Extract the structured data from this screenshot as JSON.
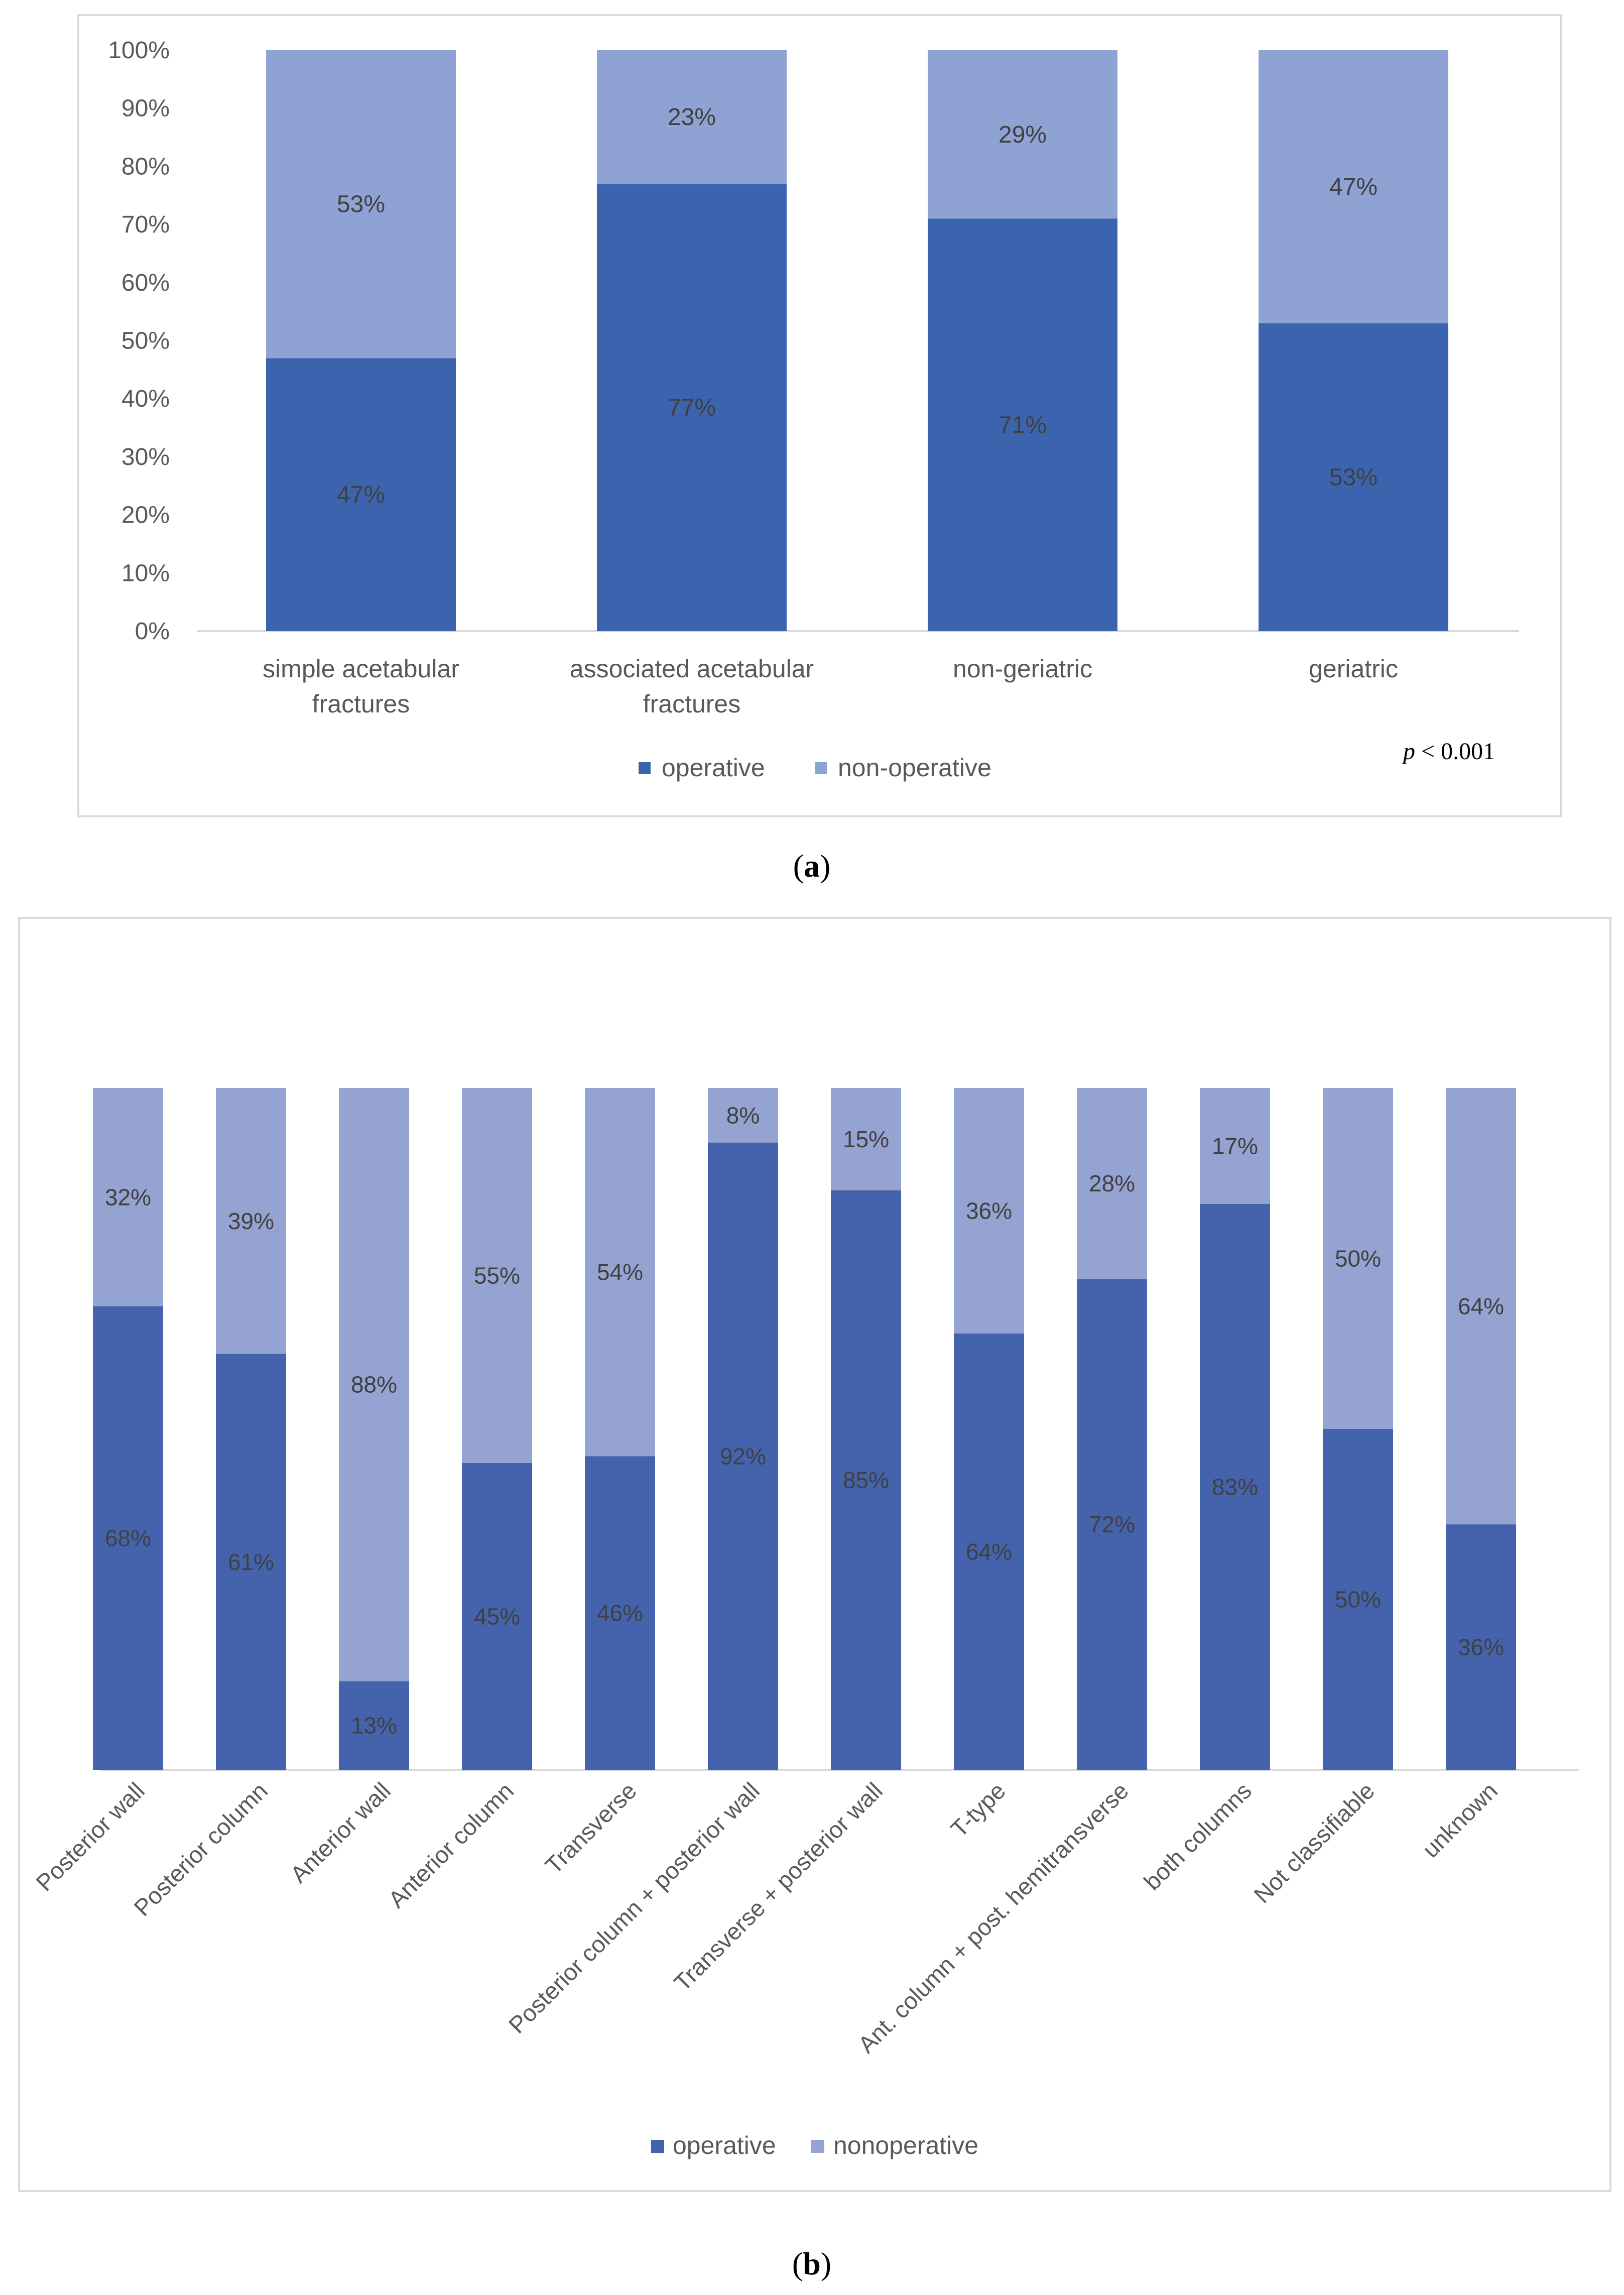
{
  "colors": {
    "operative_a": "#3c64ae",
    "nonoperative_a": "#8fa2d4",
    "operative_b": "#4563ac",
    "nonoperative_b": "#94a3d2",
    "frame": "#d9d9d9",
    "label": "#404040"
  },
  "panel_a": {
    "caption_letter": "a",
    "p_value_label": "p",
    "p_value_rest": " < 0.001"
  },
  "panel_b": {
    "caption_letter": "b"
  },
  "chart_data": [
    {
      "type": "bar",
      "stacked": true,
      "percent": true,
      "categories": [
        [
          "simple acetabular",
          "fractures"
        ],
        [
          "associated acetabular",
          "fractures"
        ],
        [
          "non-geriatric"
        ],
        [
          "geriatric"
        ]
      ],
      "series": [
        {
          "name": "operative",
          "values": [
            47,
            77,
            71,
            53
          ],
          "labels": [
            "47%",
            "77%",
            "71%",
            "53%"
          ]
        },
        {
          "name": "non-operative",
          "values": [
            53,
            23,
            29,
            47
          ],
          "labels": [
            "53%",
            "23%",
            "29%",
            "47%"
          ]
        }
      ],
      "ylim": [
        0,
        100
      ],
      "yticks": [
        "0%",
        "10%",
        "20%",
        "30%",
        "40%",
        "50%",
        "60%",
        "70%",
        "80%",
        "90%",
        "100%"
      ],
      "legend": "bottom",
      "annotation": "p < 0.001"
    },
    {
      "type": "bar",
      "stacked": true,
      "percent": true,
      "categories": [
        "Posterior wall",
        "Posterior column",
        "Anterior wall",
        "Anterior column",
        "Transverse",
        "Posterior column + posterior wall",
        "Transverse + posterior wall",
        "T-type",
        "Ant. column + post. hemitransverse",
        "both columns",
        "Not classifiable",
        "unknown"
      ],
      "series": [
        {
          "name": "operative",
          "values": [
            68,
            61,
            13,
            45,
            46,
            92,
            85,
            64,
            72,
            83,
            50,
            36
          ],
          "labels": [
            "68%",
            "61%",
            "13%",
            "45%",
            "46%",
            "92%",
            "85%",
            "64%",
            "72%",
            "83%",
            "50%",
            "36%"
          ]
        },
        {
          "name": "nonoperative",
          "values": [
            32,
            39,
            88,
            55,
            54,
            8,
            15,
            36,
            28,
            17,
            50,
            64
          ],
          "labels": [
            "32%",
            "39%",
            "88%",
            "55%",
            "54%",
            "8%",
            "15%",
            "36%",
            "28%",
            "17%",
            "50%",
            "64%"
          ]
        }
      ],
      "ylim": [
        0,
        100
      ],
      "legend": "bottom"
    }
  ]
}
